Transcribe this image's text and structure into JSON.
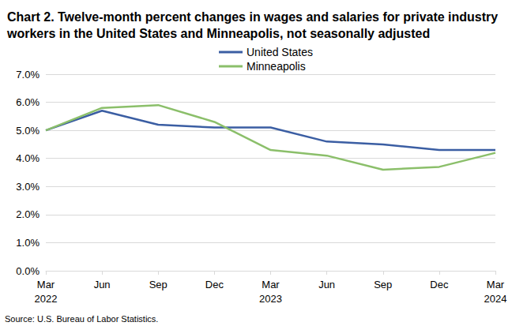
{
  "chart_data": {
    "type": "line",
    "title": "Chart 2. Twelve-month percent changes in wages and salaries for private industry workers in the United States and Minneapolis, not seasonally adjusted",
    "source": "Source: U.S. Bureau of Labor Statistics.",
    "categories": [
      "Mar\n2022",
      "Jun",
      "Sep",
      "Dec",
      "Mar\n2023",
      "Jun",
      "Sep",
      "Dec",
      "Mar\n2024"
    ],
    "series": [
      {
        "name": "United States",
        "color": "#3b5ea3",
        "values": [
          5.0,
          5.7,
          5.2,
          5.1,
          5.1,
          4.6,
          4.5,
          4.3,
          4.3
        ]
      },
      {
        "name": "Minneapolis",
        "color": "#8bbf6a",
        "values": [
          5.0,
          5.8,
          5.9,
          5.3,
          4.3,
          4.1,
          3.6,
          3.7,
          4.2
        ]
      }
    ],
    "ylim": [
      0,
      7
    ],
    "yticks": [
      {
        "value": 0,
        "label": "0.0%"
      },
      {
        "value": 1,
        "label": "1.0%"
      },
      {
        "value": 2,
        "label": "2.0%"
      },
      {
        "value": 3,
        "label": "3.0%"
      },
      {
        "value": 4,
        "label": "4.0%"
      },
      {
        "value": 5,
        "label": "5.0%"
      },
      {
        "value": 6,
        "label": "6.0%"
      },
      {
        "value": 7,
        "label": "7.0%"
      }
    ],
    "grid": true,
    "legend": "top"
  }
}
